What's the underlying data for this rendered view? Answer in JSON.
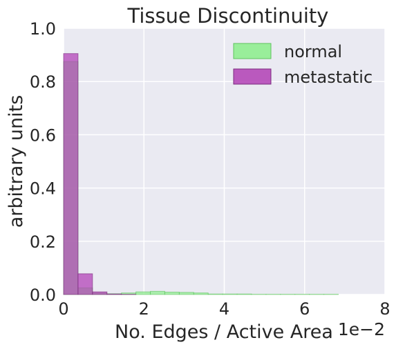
{
  "chart_data": {
    "type": "bar",
    "subtype": "histogram",
    "title": "Tissue Discontinuity",
    "xlabel": "No. Edges / Active Area",
    "ylabel": "arbitrary units",
    "x_scale_label": "1e−2",
    "xlim": [
      0,
      8
    ],
    "ylim": [
      0,
      1.0
    ],
    "xticks": [
      0,
      2,
      4,
      6,
      8
    ],
    "xtick_labels": [
      "0",
      "2",
      "4",
      "6",
      "8"
    ],
    "yticks": [
      0.0,
      0.2,
      0.4,
      0.6,
      0.8,
      1.0
    ],
    "ytick_labels": [
      "0.0",
      "0.2",
      "0.4",
      "0.6",
      "0.8",
      "1.0"
    ],
    "grid": true,
    "legend_position": "top-right",
    "series": [
      {
        "name": "normal",
        "color": "#90ee90",
        "bins": [
          {
            "x0": 0.0,
            "x1": 0.36,
            "value": 0.875
          },
          {
            "x0": 0.36,
            "x1": 0.72,
            "value": 0.025
          },
          {
            "x0": 0.72,
            "x1": 1.08,
            "value": 0.006
          },
          {
            "x0": 1.08,
            "x1": 1.44,
            "value": 0.003
          },
          {
            "x0": 1.44,
            "x1": 1.8,
            "value": 0.006
          },
          {
            "x0": 1.8,
            "x1": 2.16,
            "value": 0.01
          },
          {
            "x0": 2.16,
            "x1": 2.52,
            "value": 0.012
          },
          {
            "x0": 2.52,
            "x1": 2.88,
            "value": 0.009
          },
          {
            "x0": 2.88,
            "x1": 3.24,
            "value": 0.008
          },
          {
            "x0": 3.24,
            "x1": 3.6,
            "value": 0.006
          },
          {
            "x0": 3.6,
            "x1": 3.96,
            "value": 0.002
          },
          {
            "x0": 3.96,
            "x1": 4.32,
            "value": 0.002
          },
          {
            "x0": 4.32,
            "x1": 4.68,
            "value": 0.002
          },
          {
            "x0": 4.68,
            "x1": 5.04,
            "value": 0.001
          },
          {
            "x0": 5.04,
            "x1": 5.4,
            "value": 0.001
          },
          {
            "x0": 5.4,
            "x1": 5.76,
            "value": 0.001
          },
          {
            "x0": 5.76,
            "x1": 6.12,
            "value": 0.001
          },
          {
            "x0": 6.12,
            "x1": 6.48,
            "value": 0.001
          },
          {
            "x0": 6.48,
            "x1": 6.84,
            "value": 0.001
          }
        ]
      },
      {
        "name": "metastatic",
        "color": "#b23fb5",
        "bins": [
          {
            "x0": 0.0,
            "x1": 0.36,
            "value": 0.905
          },
          {
            "x0": 0.36,
            "x1": 0.72,
            "value": 0.078
          },
          {
            "x0": 0.72,
            "x1": 1.08,
            "value": 0.01
          },
          {
            "x0": 1.08,
            "x1": 1.44,
            "value": 0.002
          },
          {
            "x0": 1.44,
            "x1": 1.8,
            "value": 0.001
          }
        ]
      }
    ]
  }
}
